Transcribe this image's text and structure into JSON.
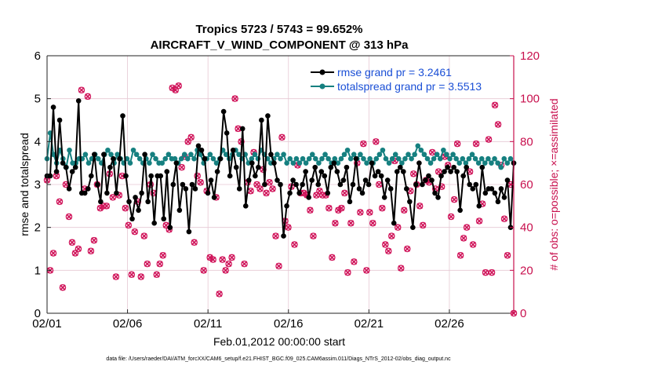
{
  "chart_data": {
    "type": "line",
    "title_line1": "Tropics 5723 / 5743 = 99.652%",
    "title_line2": "AIRCRAFT_V_WIND_COMPONENT @ 313 hPa",
    "xlabel": "Feb.01,2012 00:00:00 start",
    "ylabel": "rmse and totalspread",
    "ylabel_right": "# of obs: o=possible; ×=assimilated",
    "footer": "data file: /Users/raeder/DAI/ATM_forcXX/CAM6_setup/f.e21.FHIST_BGC.f09_025.CAM6assim.011/Diags_NTrS_2012-02/obs_diag_output.nc",
    "xlim": [
      1,
      30
    ],
    "ylim": [
      0,
      6
    ],
    "ylim_right": [
      0,
      120
    ],
    "x_ticks": [
      1,
      6,
      11,
      16,
      21,
      26
    ],
    "x_tick_labels": [
      "02/01",
      "02/06",
      "02/11",
      "02/16",
      "02/21",
      "02/26"
    ],
    "y_ticks": [
      "0",
      "1",
      "2",
      "3",
      "4",
      "5",
      "6"
    ],
    "y_ticks_right": [
      "0",
      "20",
      "40",
      "60",
      "80",
      "100",
      "120"
    ],
    "colors": {
      "rmse": "#000000",
      "spread": "#168080",
      "obs": "#d0145a",
      "legend_text": "#1a4fd6",
      "right_axis": "#c8104e"
    },
    "series": [
      {
        "name": "rmse",
        "legend": "rmse grand pr = 3.2461",
        "values": [
          3.2,
          3.2,
          4.8,
          3.3,
          4.5,
          3.5,
          3.4,
          2.9,
          3.3,
          3.4,
          4.95,
          2.8,
          2.8,
          2.9,
          3.2,
          3.7,
          3.0,
          2.6,
          3.7,
          2.8,
          3.4,
          3.6,
          2.8,
          3.6,
          4.6,
          3.2,
          2.6,
          2.2,
          2.7,
          2.4,
          2.8,
          3.7,
          2.6,
          3.2,
          2.1,
          3.2,
          3.2,
          2.2,
          3.3,
          2.0,
          3.0,
          3.5,
          2.4,
          3.0,
          2.9,
          1.9,
          3.0,
          2.9,
          3.9,
          3.8,
          3.6,
          2.8,
          3.1,
          2.7,
          3.3,
          3.6,
          4.7,
          4.2,
          3.2,
          3.8,
          3.4,
          2.9,
          4.3,
          2.5,
          3.1,
          3.5,
          3.2,
          3.4,
          4.5,
          3.0,
          4.6,
          3.7,
          3.5,
          3.1,
          3.0,
          1.8,
          2.5,
          2.8,
          3.1,
          3.0,
          2.8,
          3.0,
          3.3,
          2.7,
          3.1,
          3.4,
          3.0,
          3.3,
          3.2,
          2.8,
          3.4,
          3.5,
          3.3,
          3.0,
          3.1,
          3.4,
          2.6,
          3.0,
          3.6,
          2.9,
          2.8,
          3.1,
          3.0,
          3.5,
          3.2,
          3.3,
          3.2,
          2.7,
          3.1,
          2.9,
          2.1,
          3.3,
          3.4,
          3.3,
          2.9,
          2.6,
          2.0,
          3.0,
          3.5,
          3.0,
          3.1,
          3.2,
          3.1,
          2.8,
          2.7,
          3.2,
          3.3,
          3.4,
          3.3,
          3.4,
          3.3,
          2.4,
          3.2,
          3.4,
          3.0,
          2.9,
          3.0,
          2.5,
          3.4,
          2.8,
          2.9,
          2.9,
          2.8,
          2.6,
          2.9,
          2.7,
          3.1,
          2.0,
          3.5
        ]
      },
      {
        "name": "totalspread",
        "legend": "totalspread grand pr = 3.5513",
        "values": [
          3.6,
          4.2,
          3.7,
          3.5,
          3.8,
          3.6,
          3.4,
          3.8,
          3.5,
          3.5,
          3.6,
          3.6,
          3.7,
          3.5,
          3.6,
          3.7,
          3.6,
          3.5,
          3.7,
          3.8,
          3.7,
          3.5,
          3.7,
          3.6,
          3.5,
          3.6,
          3.5,
          3.8,
          3.7,
          3.6,
          3.5,
          3.6,
          3.5,
          3.7,
          3.6,
          3.5,
          3.5,
          3.6,
          3.7,
          3.6,
          3.6,
          3.5,
          3.6,
          3.7,
          3.6,
          3.7,
          3.6,
          3.8,
          3.7,
          3.5,
          3.6,
          3.7,
          3.6,
          3.5,
          3.6,
          3.8,
          3.7,
          3.6,
          3.7,
          3.8,
          3.7,
          3.6,
          3.7,
          3.5,
          3.6,
          3.7,
          3.6,
          3.8,
          3.7,
          3.6,
          3.5,
          3.6,
          3.7,
          3.6,
          3.7,
          3.5,
          3.6,
          3.5,
          3.6,
          3.5,
          3.6,
          3.5,
          3.6,
          3.7,
          3.6,
          3.5,
          3.6,
          3.7,
          3.6,
          3.5,
          3.6,
          3.5,
          3.6,
          3.7,
          3.8,
          3.6,
          3.7,
          3.6,
          3.7,
          3.6,
          3.5,
          3.6,
          3.5,
          3.6,
          3.7,
          3.8,
          3.6,
          3.5,
          3.6,
          3.7,
          3.6,
          3.5,
          3.6,
          3.7,
          3.6,
          3.7,
          3.9,
          3.8,
          3.7,
          3.6,
          3.5,
          3.6,
          3.7,
          3.6,
          3.8,
          3.7,
          3.6,
          3.7,
          3.6,
          3.5,
          3.6,
          3.5,
          3.6,
          3.7,
          3.6,
          3.5,
          3.6,
          3.5,
          3.6,
          3.5,
          3.6,
          3.5,
          3.4,
          3.6,
          3.5,
          3.6,
          3.5
        ]
      },
      {
        "name": "obs",
        "values": [
          62,
          20,
          28,
          64,
          52,
          12,
          60,
          45,
          33,
          28,
          30,
          104,
          58,
          101,
          29,
          34,
          60,
          49,
          50,
          50,
          65,
          54,
          17,
          55,
          64,
          49,
          41,
          18,
          38,
          52,
          17,
          36,
          23,
          60,
          56,
          18,
          23,
          27,
          41,
          39,
          105,
          104,
          106,
          68,
          73,
          80,
          82,
          33,
          64,
          61,
          20,
          57,
          26,
          25,
          54,
          9,
          25,
          20,
          23,
          26,
          100,
          86,
          80,
          23,
          61,
          57,
          75,
          60,
          58,
          67,
          56,
          61,
          58,
          36,
          22,
          82,
          43,
          40,
          59,
          32,
          69,
          56,
          56,
          55,
          48,
          36,
          55,
          57,
          55,
          55,
          49,
          26,
          42,
          48,
          49,
          56,
          19,
          42,
          24,
          70,
          47,
          79,
          20,
          47,
          42,
          80,
          60,
          49,
          32,
          29,
          36,
          71,
          40,
          21,
          48,
          30,
          57,
          65,
          60,
          50,
          41,
          62,
          61,
          75,
          58,
          66,
          59,
          73,
          69,
          45,
          53,
          79,
          27,
          35,
          40,
          66,
          32,
          79,
          43,
          51,
          19,
          81,
          19,
          97,
          88,
          69,
          44,
          27,
          60,
          0
        ]
      }
    ]
  }
}
